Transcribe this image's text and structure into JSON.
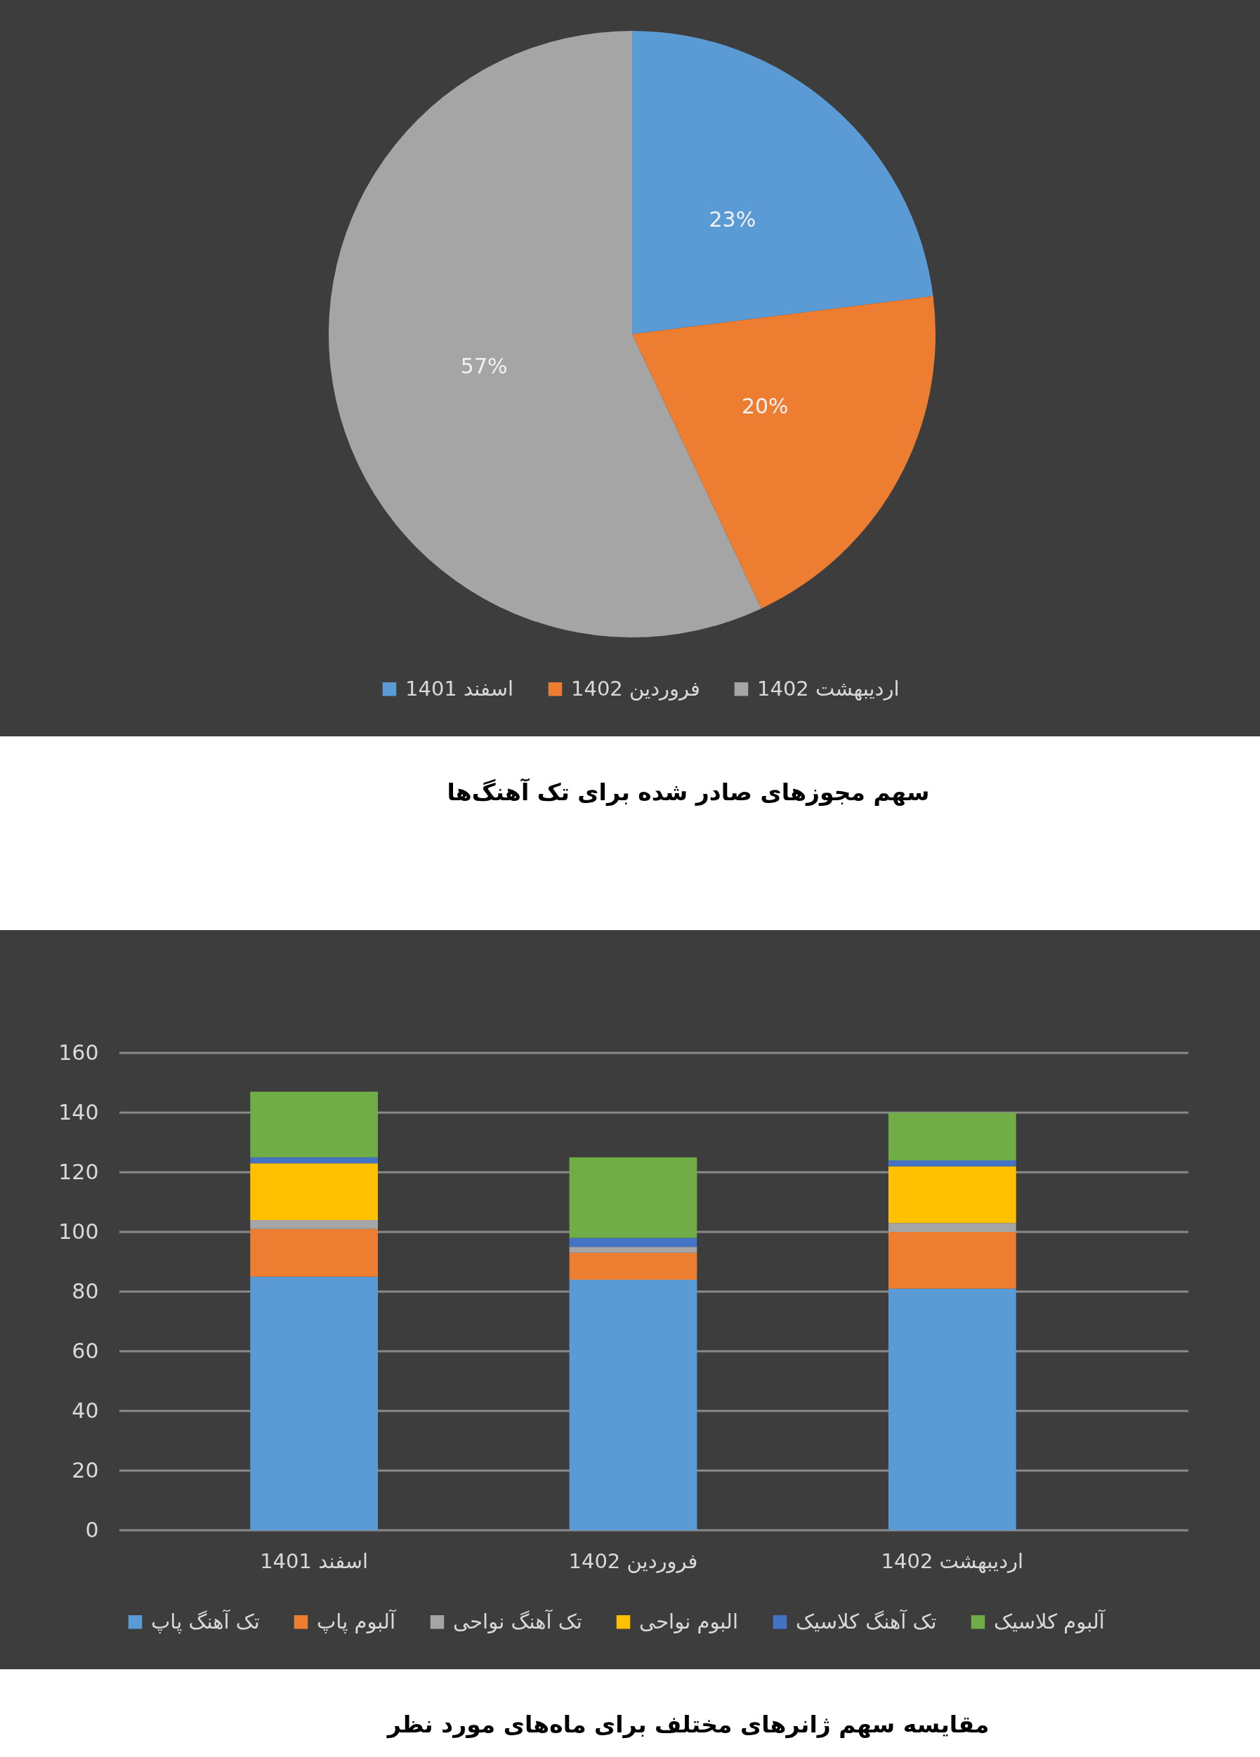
{
  "chart_data": [
    {
      "type": "pie",
      "title": "سهم مجوزهای صادر شده برای تک آهنگ‌ها",
      "categories": [
        "اسفند 1401",
        "فروردین 1402",
        "اردیبهشت 1402"
      ],
      "values": [
        23,
        20,
        57
      ],
      "colors": [
        "#5b9bd5",
        "#ed7d31",
        "#a5a5a5"
      ],
      "value_labels": [
        "23%",
        "20%",
        "57%"
      ],
      "legend": "bottom"
    },
    {
      "type": "bar",
      "title": "مقایسه سهم ژانرهای مختلف برای ماه‌های مورد نظر",
      "categories": [
        "اسفند 1401",
        "فروردین 1402",
        "اردیبهشت 1402"
      ],
      "stacked": true,
      "series": [
        {
          "name": "تک آهنگ پاپ",
          "color": "#5b9bd5",
          "values": [
            85,
            84,
            81
          ]
        },
        {
          "name": "آلبوم پاپ",
          "color": "#ed7d31",
          "values": [
            16,
            9,
            19
          ]
        },
        {
          "name": "تک آهنگ نواحی",
          "color": "#a5a5a5",
          "values": [
            3,
            2,
            3
          ]
        },
        {
          "name": "البوم نواحی",
          "color": "#ffc000",
          "values": [
            19,
            0,
            19
          ]
        },
        {
          "name": "تک آهنگ کلاسیک",
          "color": "#4472c4",
          "values": [
            2,
            3,
            2
          ]
        },
        {
          "name": "آلبوم کلاسیک",
          "color": "#70ad47",
          "values": [
            22,
            27,
            16
          ]
        }
      ],
      "ylim": [
        0,
        160
      ],
      "yticks": [
        0,
        20,
        40,
        60,
        80,
        100,
        120,
        140,
        160
      ],
      "grid": "y",
      "legend": "bottom"
    }
  ]
}
